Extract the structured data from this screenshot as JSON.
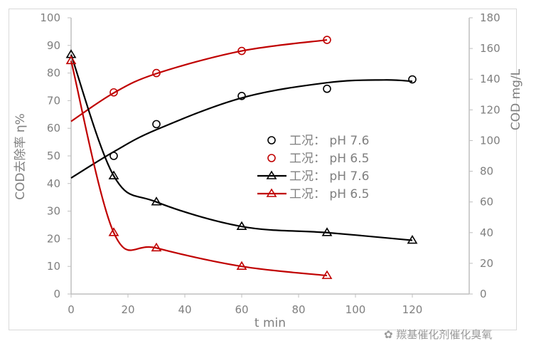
{
  "chart_data": {
    "type": "scatter",
    "xlabel": "t min",
    "ylabel": "COD去除率 η%",
    "y2label": "COD mg/L",
    "xlim": [
      0,
      140
    ],
    "ylim": [
      0,
      100
    ],
    "y2lim": [
      0,
      180
    ],
    "xticks": [
      0,
      20,
      40,
      60,
      80,
      100,
      120
    ],
    "yticks": [
      0,
      10,
      20,
      30,
      40,
      50,
      60,
      70,
      80,
      90,
      100
    ],
    "y2ticks": [
      0,
      20,
      40,
      60,
      80,
      100,
      120,
      140,
      160,
      180
    ],
    "grid": false,
    "legend_placement": "center-right",
    "series": [
      {
        "name": "工况： pH 7.6",
        "marker": "circle",
        "axis": "left",
        "color": "#000000",
        "x": [
          15,
          30,
          60,
          90,
          120
        ],
        "y": [
          50,
          61.5,
          71.7,
          74.3,
          77.7
        ],
        "trendline": {
          "x": [
            0,
            15,
            30,
            60,
            90,
            110,
            120
          ],
          "y": [
            42,
            51.5,
            59.5,
            71,
            76.5,
            77.5,
            77
          ]
        }
      },
      {
        "name": "工况： pH 6.5",
        "marker": "circle",
        "axis": "left",
        "color": "#c00000",
        "x": [
          15,
          30,
          60,
          90
        ],
        "y": [
          73,
          80,
          88,
          92
        ],
        "trendline": {
          "x": [
            0,
            15,
            30,
            60,
            90
          ],
          "y": [
            62.5,
            72.8,
            79.8,
            88,
            92
          ]
        }
      },
      {
        "name": "工况： pH 7.6",
        "marker": "triangle",
        "axis": "right",
        "color": "#000000",
        "x": [
          0,
          15,
          30,
          60,
          90,
          120
        ],
        "y": [
          156,
          77,
          60,
          44,
          40,
          35
        ]
      },
      {
        "name": "工况： pH 6.5",
        "marker": "triangle",
        "axis": "right",
        "color": "#c00000",
        "x": [
          0,
          15,
          30,
          60,
          90
        ],
        "y": [
          152,
          40,
          30,
          18,
          12
        ]
      }
    ]
  },
  "watermark": "羰基催化剂催化臭氧"
}
